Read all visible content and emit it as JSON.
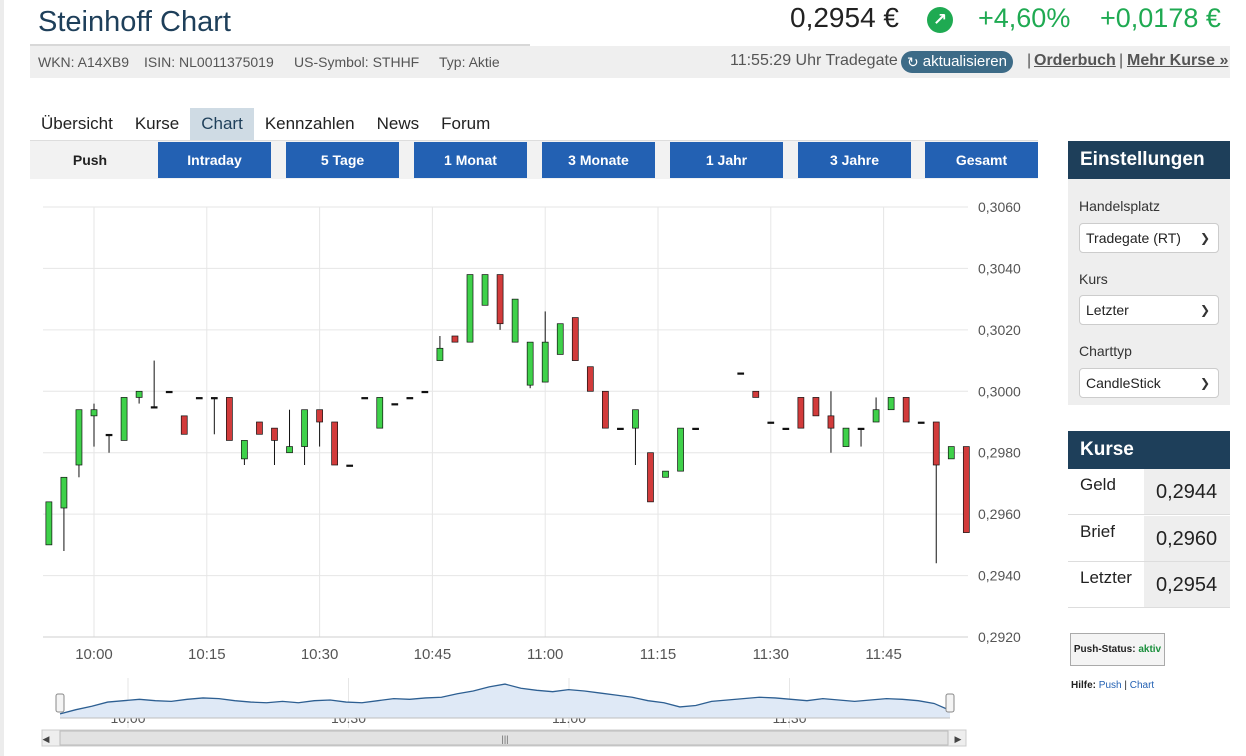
{
  "header": {
    "title": "Steinhoff Chart",
    "price": "0,2954 €",
    "change_pct": "+4,60%",
    "change_abs": "+0,0178 €",
    "trend_icon": "arrow-up-right-icon"
  },
  "meta": {
    "wkn": "WKN: A14XB9",
    "isin": "ISIN: NL0011375019",
    "us_symbol": "US-Symbol: STHHF",
    "typ": "Typ: Aktie",
    "time": "11:55:29 Uhr Tradegate",
    "refresh_label": "aktualisieren",
    "separator": "|",
    "orderbuch": "Orderbuch",
    "mehr_kurse": "Mehr Kurse »"
  },
  "tabs": [
    "Übersicht",
    "Kurse",
    "Chart",
    "Kennzahlen",
    "News",
    "Forum"
  ],
  "active_tab": "Chart",
  "ranges": {
    "push": "Push",
    "buttons": [
      "Intraday",
      "5 Tage",
      "1 Monat",
      "3 Monate",
      "1 Jahr",
      "3 Jahre",
      "Gesamt"
    ]
  },
  "settings": {
    "title": "Einstellungen",
    "handelsplatz_label": "Handelsplatz",
    "handelsplatz_value": "Tradegate (RT)",
    "kurs_label": "Kurs",
    "kurs_value": "Letzter",
    "charttyp_label": "Charttyp",
    "charttyp_value": "CandleStick"
  },
  "kurse": {
    "title": "Kurse",
    "rows": [
      {
        "label": "Geld",
        "value": "0,2944"
      },
      {
        "label": "Brief",
        "value": "0,2960"
      },
      {
        "label": "Letzter",
        "value": "0,2954"
      }
    ]
  },
  "push_status": {
    "label": "Push-Status:",
    "value": "aktiv"
  },
  "help": {
    "label": "Hilfe:",
    "push": "Push",
    "sep": "|",
    "chart": "Chart"
  },
  "colors": {
    "up": "#3fd14a",
    "down": "#d23b3b",
    "accent": "#2361b3",
    "panel": "#1e3f5a"
  },
  "chart_data": {
    "type": "candlestick",
    "x_unit": "time",
    "ylim": [
      0.292,
      0.306
    ],
    "yticks": [
      "0,2920",
      "0,2940",
      "0,2960",
      "0,2980",
      "0,3000",
      "0,3020",
      "0,3040",
      "0,3060"
    ],
    "yticks_values": [
      0.292,
      0.294,
      0.296,
      0.298,
      0.3,
      0.302,
      0.304,
      0.306
    ],
    "xticks": [
      "10:00",
      "10:15",
      "10:30",
      "10:45",
      "11:00",
      "11:15",
      "11:30",
      "11:45"
    ],
    "xticks_minutes": [
      0,
      15,
      30,
      45,
      60,
      75,
      90,
      105
    ],
    "candles": [
      {
        "t": -6,
        "o": 0.295,
        "h": 0.2964,
        "l": 0.295,
        "c": 0.2964
      },
      {
        "t": -4,
        "o": 0.2962,
        "h": 0.2972,
        "l": 0.2948,
        "c": 0.2972
      },
      {
        "t": -2,
        "o": 0.2976,
        "h": 0.2994,
        "l": 0.2972,
        "c": 0.2994
      },
      {
        "t": 0,
        "o": 0.2992,
        "h": 0.2996,
        "l": 0.2982,
        "c": 0.2994
      },
      {
        "t": 2,
        "o": 0.2986,
        "h": 0.2986,
        "l": 0.298,
        "c": 0.2986
      },
      {
        "t": 4,
        "o": 0.2984,
        "h": 0.2998,
        "l": 0.2984,
        "c": 0.2998
      },
      {
        "t": 6,
        "o": 0.2998,
        "h": 0.3,
        "l": 0.2996,
        "c": 0.3
      },
      {
        "t": 8,
        "o": 0.2995,
        "h": 0.301,
        "l": 0.2995,
        "c": 0.2995
      },
      {
        "t": 10,
        "o": 0.3,
        "h": 0.3,
        "l": 0.3,
        "c": 0.3
      },
      {
        "t": 12,
        "o": 0.2992,
        "h": 0.2992,
        "l": 0.2986,
        "c": 0.2986
      },
      {
        "t": 14,
        "o": 0.2998,
        "h": 0.2998,
        "l": 0.2998,
        "c": 0.2998
      },
      {
        "t": 16,
        "o": 0.2998,
        "h": 0.2998,
        "l": 0.2986,
        "c": 0.2998
      },
      {
        "t": 18,
        "o": 0.2998,
        "h": 0.2998,
        "l": 0.2984,
        "c": 0.2984
      },
      {
        "t": 20,
        "o": 0.2978,
        "h": 0.2984,
        "l": 0.2976,
        "c": 0.2984
      },
      {
        "t": 22,
        "o": 0.299,
        "h": 0.299,
        "l": 0.2986,
        "c": 0.2986
      },
      {
        "t": 24,
        "o": 0.2988,
        "h": 0.2988,
        "l": 0.2976,
        "c": 0.2984
      },
      {
        "t": 26,
        "o": 0.298,
        "h": 0.2994,
        "l": 0.298,
        "c": 0.2982
      },
      {
        "t": 28,
        "o": 0.2982,
        "h": 0.2994,
        "l": 0.2976,
        "c": 0.2994
      },
      {
        "t": 30,
        "o": 0.2994,
        "h": 0.2994,
        "l": 0.2982,
        "c": 0.299
      },
      {
        "t": 32,
        "o": 0.299,
        "h": 0.299,
        "l": 0.2976,
        "c": 0.2976
      },
      {
        "t": 34,
        "o": 0.2976,
        "h": 0.2976,
        "l": 0.2976,
        "c": 0.2976
      },
      {
        "t": 36,
        "o": 0.2998,
        "h": 0.2998,
        "l": 0.2998,
        "c": 0.2998
      },
      {
        "t": 38,
        "o": 0.2988,
        "h": 0.2998,
        "l": 0.2988,
        "c": 0.2998
      },
      {
        "t": 40,
        "o": 0.2996,
        "h": 0.2996,
        "l": 0.2996,
        "c": 0.2996
      },
      {
        "t": 42,
        "o": 0.2998,
        "h": 0.2998,
        "l": 0.2998,
        "c": 0.2998
      },
      {
        "t": 44,
        "o": 0.3,
        "h": 0.3,
        "l": 0.3,
        "c": 0.3
      },
      {
        "t": 46,
        "o": 0.301,
        "h": 0.3018,
        "l": 0.301,
        "c": 0.3014
      },
      {
        "t": 48,
        "o": 0.3018,
        "h": 0.3018,
        "l": 0.3016,
        "c": 0.3016
      },
      {
        "t": 50,
        "o": 0.3016,
        "h": 0.3038,
        "l": 0.3016,
        "c": 0.3038
      },
      {
        "t": 52,
        "o": 0.3028,
        "h": 0.3038,
        "l": 0.3028,
        "c": 0.3038
      },
      {
        "t": 54,
        "o": 0.3038,
        "h": 0.3038,
        "l": 0.302,
        "c": 0.3022
      },
      {
        "t": 56,
        "o": 0.3016,
        "h": 0.303,
        "l": 0.3016,
        "c": 0.303
      },
      {
        "t": 58,
        "o": 0.3002,
        "h": 0.3016,
        "l": 0.3001,
        "c": 0.3016
      },
      {
        "t": 60,
        "o": 0.3003,
        "h": 0.3026,
        "l": 0.3003,
        "c": 0.3016
      },
      {
        "t": 62,
        "o": 0.3012,
        "h": 0.3022,
        "l": 0.3012,
        "c": 0.3022
      },
      {
        "t": 64,
        "o": 0.3024,
        "h": 0.3024,
        "l": 0.301,
        "c": 0.301
      },
      {
        "t": 66,
        "o": 0.3008,
        "h": 0.3008,
        "l": 0.3,
        "c": 0.3
      },
      {
        "t": 68,
        "o": 0.3,
        "h": 0.3,
        "l": 0.2988,
        "c": 0.2988
      },
      {
        "t": 70,
        "o": 0.2988,
        "h": 0.2988,
        "l": 0.2988,
        "c": 0.2988
      },
      {
        "t": 72,
        "o": 0.2988,
        "h": 0.2994,
        "l": 0.2976,
        "c": 0.2994
      },
      {
        "t": 74,
        "o": 0.298,
        "h": 0.298,
        "l": 0.2964,
        "c": 0.2964
      },
      {
        "t": 76,
        "o": 0.2972,
        "h": 0.2974,
        "l": 0.2972,
        "c": 0.2974
      },
      {
        "t": 78,
        "o": 0.2974,
        "h": 0.2988,
        "l": 0.2974,
        "c": 0.2988
      },
      {
        "t": 80,
        "o": 0.2988,
        "h": 0.2988,
        "l": 0.2988,
        "c": 0.2988
      },
      {
        "t": 86,
        "o": 0.3006,
        "h": 0.3006,
        "l": 0.3006,
        "c": 0.3006
      },
      {
        "t": 88,
        "o": 0.3,
        "h": 0.3,
        "l": 0.2998,
        "c": 0.2998
      },
      {
        "t": 90,
        "o": 0.299,
        "h": 0.299,
        "l": 0.299,
        "c": 0.299
      },
      {
        "t": 92,
        "o": 0.2988,
        "h": 0.2988,
        "l": 0.2988,
        "c": 0.2988
      },
      {
        "t": 94,
        "o": 0.2998,
        "h": 0.2998,
        "l": 0.2988,
        "c": 0.2988
      },
      {
        "t": 96,
        "o": 0.2998,
        "h": 0.2998,
        "l": 0.2992,
        "c": 0.2992
      },
      {
        "t": 98,
        "o": 0.2992,
        "h": 0.3,
        "l": 0.298,
        "c": 0.2988
      },
      {
        "t": 100,
        "o": 0.2982,
        "h": 0.2988,
        "l": 0.2982,
        "c": 0.2988
      },
      {
        "t": 102,
        "o": 0.2988,
        "h": 0.2988,
        "l": 0.2982,
        "c": 0.2988
      },
      {
        "t": 104,
        "o": 0.299,
        "h": 0.2998,
        "l": 0.299,
        "c": 0.2994
      },
      {
        "t": 106,
        "o": 0.2994,
        "h": 0.2998,
        "l": 0.2994,
        "c": 0.2998
      },
      {
        "t": 108,
        "o": 0.2998,
        "h": 0.2998,
        "l": 0.299,
        "c": 0.299
      },
      {
        "t": 110,
        "o": 0.299,
        "h": 0.299,
        "l": 0.299,
        "c": 0.299
      },
      {
        "t": 112,
        "o": 0.299,
        "h": 0.299,
        "l": 0.2944,
        "c": 0.2976
      },
      {
        "t": 114,
        "o": 0.2978,
        "h": 0.2982,
        "l": 0.2978,
        "c": 0.2982
      },
      {
        "t": 116,
        "o": 0.2982,
        "h": 0.2982,
        "l": 0.2954,
        "c": 0.2954
      }
    ],
    "navigator": {
      "xticks": [
        "10:00",
        "10:30",
        "11:00",
        "11:30"
      ],
      "xticks_minutes": [
        0,
        30,
        60,
        90
      ],
      "values": [
        0.2952,
        0.2964,
        0.2974,
        0.2986,
        0.299,
        0.2994,
        0.299,
        0.2988,
        0.2994,
        0.2998,
        0.2996,
        0.299,
        0.2986,
        0.2984,
        0.2988,
        0.2984,
        0.299,
        0.2992,
        0.2986,
        0.2984,
        0.299,
        0.2996,
        0.2994,
        0.2998,
        0.3,
        0.301,
        0.3018,
        0.303,
        0.3038,
        0.3026,
        0.302,
        0.3016,
        0.3022,
        0.3018,
        0.3012,
        0.3006,
        0.3,
        0.299,
        0.2984,
        0.2972,
        0.2976,
        0.2988,
        0.2992,
        0.2996,
        0.3,
        0.2998,
        0.2994,
        0.299,
        0.2996,
        0.2992,
        0.2988,
        0.2992,
        0.2996,
        0.2994,
        0.299,
        0.2982,
        0.2962
      ]
    }
  }
}
